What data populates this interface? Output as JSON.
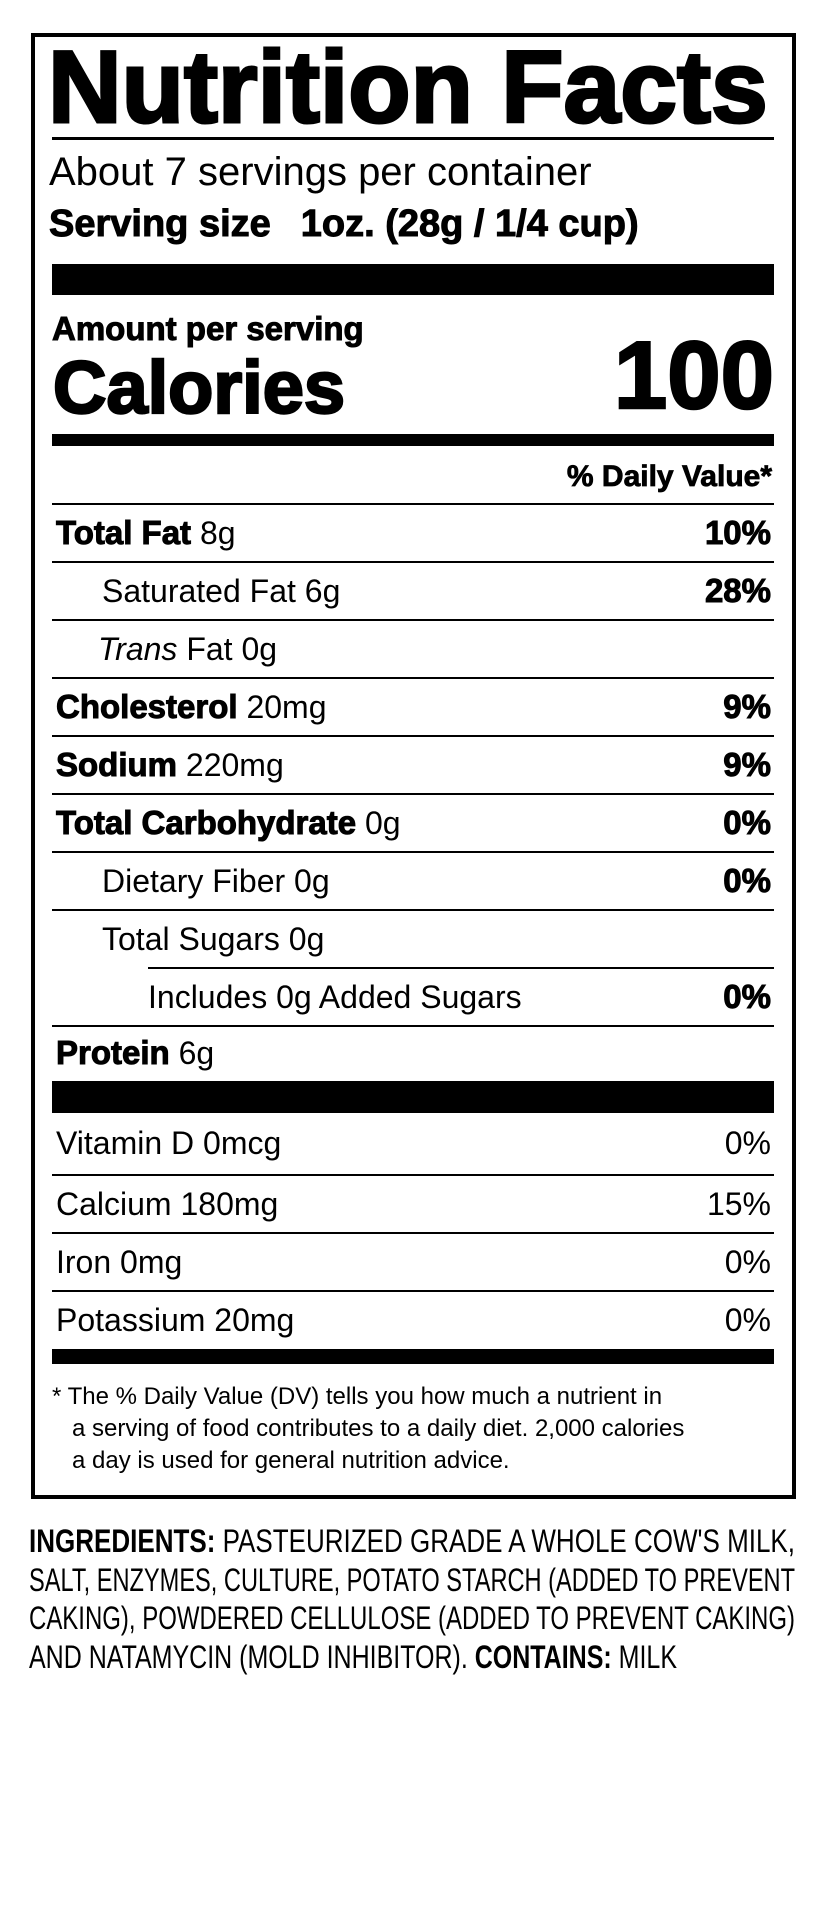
{
  "label": {
    "title": "Nutrition Facts",
    "servings_per_container": "About 7 servings per container",
    "serving_size_label": "Serving size",
    "serving_size_value": "1oz. (28g / 1/4 cup)",
    "amount_per_serving": "Amount per serving",
    "calories_label": "Calories",
    "calories_value": "100",
    "daily_value_header": "% Daily Value*",
    "nutrients": [
      {
        "name": "Total Fat",
        "amount": "8g",
        "dv": "10%"
      },
      {
        "name": "Saturated Fat",
        "amount": "6g",
        "dv": "28%"
      },
      {
        "name_italic": "Trans",
        "name": "Fat",
        "amount": "0g",
        "dv": ""
      },
      {
        "name": "Cholesterol",
        "amount": "20mg",
        "dv": "9%"
      },
      {
        "name": "Sodium",
        "amount": "220mg",
        "dv": "9%"
      },
      {
        "name": "Total Carbohydrate",
        "amount": "0g",
        "dv": "0%"
      },
      {
        "name": "Dietary Fiber",
        "amount": "0g",
        "dv": "0%"
      },
      {
        "name": "Total Sugars",
        "amount": "0g",
        "dv": ""
      },
      {
        "name": "Includes 0g Added Sugars",
        "dv": "0%"
      },
      {
        "name": "Protein",
        "amount": "6g"
      }
    ],
    "vitamins": [
      {
        "name": "Vitamin D 0mcg",
        "dv": "0%"
      },
      {
        "name": "Calcium 180mg",
        "dv": "15%"
      },
      {
        "name": "Iron 0mg",
        "dv": "0%"
      },
      {
        "name": "Potassium 20mg",
        "dv": "0%"
      }
    ],
    "footnote": [
      "* The % Daily Value (DV) tells you how much a nutrient in",
      "a serving of food contributes to a daily diet. 2,000 calories",
      "a day is used for general nutrition advice."
    ]
  },
  "ingredients": {
    "heading": "INGREDIENTS:",
    "lines": [
      "PASTEURIZED GRADE A WHOLE COW'S MILK,",
      "SALT, ENZYMES, CULTURE, POTATO STARCH (ADDED TO PREVENT",
      "CAKING), POWDERED CELLULOSE (ADDED TO PREVENT CAKING)",
      "AND NATAMYCIN (MOLD INHIBITOR)."
    ],
    "contains_heading": "CONTAINS:",
    "contains": "MILK"
  }
}
